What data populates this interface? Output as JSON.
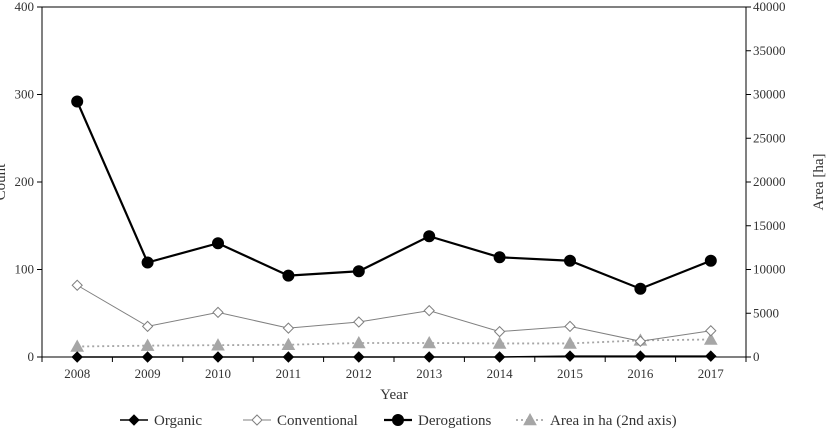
{
  "chart_data": {
    "type": "line",
    "title": "",
    "xlabel": "Year",
    "ylabel": "Count",
    "ylabel_right": "Area [ha]",
    "categories": [
      "2008",
      "2009",
      "2010",
      "2011",
      "2012",
      "2013",
      "2014",
      "2015",
      "2016",
      "2017"
    ],
    "ylim": [
      0,
      400
    ],
    "ylim_right": [
      0,
      40000
    ],
    "yticks": [
      0,
      100,
      200,
      300,
      400
    ],
    "yticks_right": [
      0,
      5000,
      10000,
      15000,
      20000,
      25000,
      30000,
      35000,
      40000
    ],
    "grid": false,
    "legend_position": "bottom",
    "series": [
      {
        "name": "Organic",
        "axis": "left",
        "color": "#000000",
        "marker": "diamond-filled",
        "line_style": "solid",
        "values": [
          0,
          0,
          0,
          0,
          0,
          0,
          0,
          1,
          1,
          1
        ]
      },
      {
        "name": "Conventional",
        "axis": "left",
        "color": "#808080",
        "marker": "diamond-open",
        "line_style": "solid",
        "values": [
          82,
          35,
          51,
          33,
          40,
          53,
          29,
          35,
          18,
          30
        ]
      },
      {
        "name": "Derogations",
        "axis": "left",
        "color": "#000000",
        "marker": "circle-filled",
        "line_style": "solid",
        "values": [
          292,
          108,
          130,
          93,
          98,
          138,
          114,
          110,
          78,
          110
        ]
      },
      {
        "name": "Area in ha (2nd axis)",
        "axis": "right",
        "color": "#a6a6a6",
        "marker": "triangle-filled",
        "line_style": "dotted",
        "values": [
          1200,
          1300,
          1350,
          1400,
          1600,
          1600,
          1550,
          1550,
          1900,
          2000
        ]
      }
    ]
  }
}
